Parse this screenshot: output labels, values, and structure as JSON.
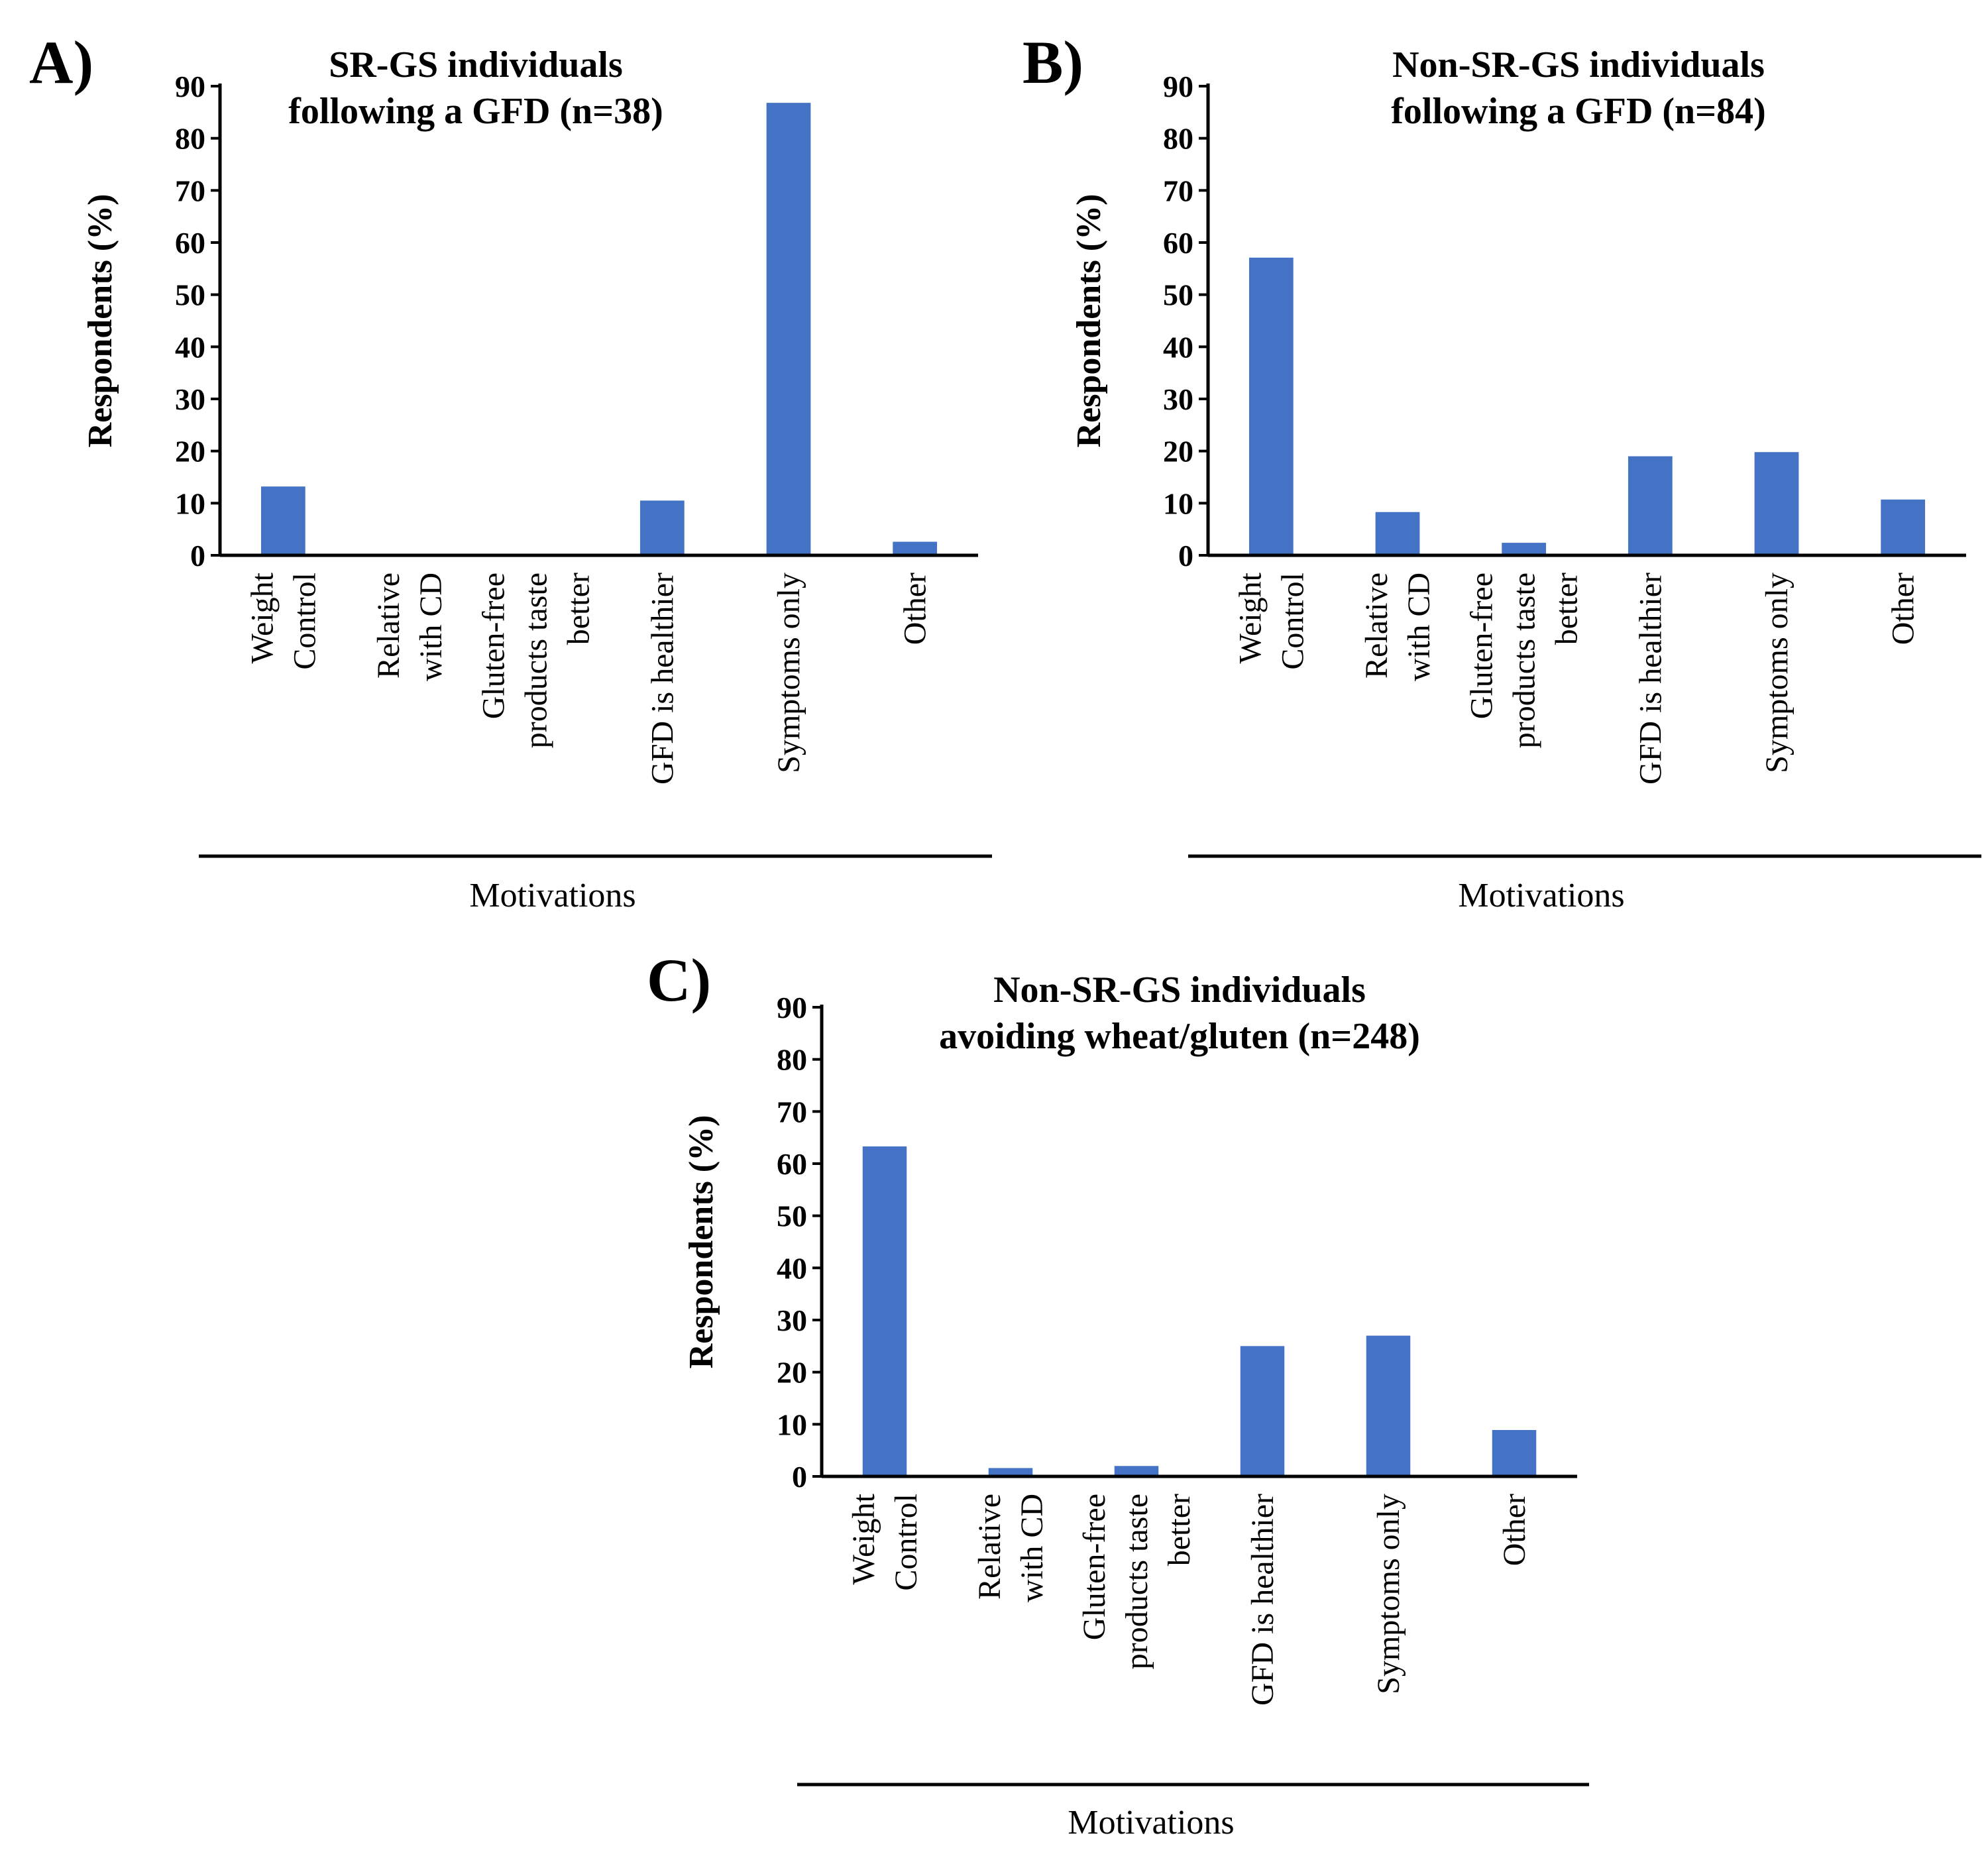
{
  "chart_data": [
    {
      "type": "bar",
      "panel": "A)",
      "title_lines": [
        "SR-GS individuals",
        "following a GFD (n=38)"
      ],
      "ylabel": "Respondents (%)",
      "xlabel": "Motivations",
      "ylim": [
        0,
        90
      ],
      "yticks": [
        0,
        10,
        20,
        30,
        40,
        50,
        60,
        70,
        80,
        90
      ],
      "categories": [
        [
          "Weight",
          "Control"
        ],
        [
          "Relative",
          "with CD"
        ],
        [
          "Gluten-free",
          "products taste",
          "better"
        ],
        [
          "GFD is healthier"
        ],
        [
          "Symptoms only"
        ],
        [
          "Other"
        ]
      ],
      "values": [
        13.2,
        0,
        0,
        10.5,
        86.8,
        2.6
      ],
      "color": "#4472C4"
    },
    {
      "type": "bar",
      "panel": "B)",
      "title_lines": [
        "Non-SR-GS individuals",
        "following a GFD (n=84)"
      ],
      "ylabel": "Respondents (%)",
      "xlabel": "Motivations",
      "ylim": [
        0,
        90
      ],
      "yticks": [
        0,
        10,
        20,
        30,
        40,
        50,
        60,
        70,
        80,
        90
      ],
      "categories": [
        [
          "Weight",
          "Control"
        ],
        [
          "Relative",
          "with CD"
        ],
        [
          "Gluten-free",
          "products taste",
          "better"
        ],
        [
          "GFD is healthier"
        ],
        [
          "Symptoms only"
        ],
        [
          "Other"
        ]
      ],
      "values": [
        57.1,
        8.3,
        2.4,
        19.0,
        19.8,
        10.7
      ],
      "color": "#4472C4"
    },
    {
      "type": "bar",
      "panel": "C)",
      "title_lines": [
        "Non-SR-GS individuals",
        "avoiding wheat/gluten (n=248)"
      ],
      "ylabel": "Respondents (%)",
      "xlabel": "Motivations",
      "ylim": [
        0,
        90
      ],
      "yticks": [
        0,
        10,
        20,
        30,
        40,
        50,
        60,
        70,
        80,
        90
      ],
      "categories": [
        [
          "Weight",
          "Control"
        ],
        [
          "Relative",
          "with CD"
        ],
        [
          "Gluten-free",
          "products taste",
          "better"
        ],
        [
          "GFD is healthier"
        ],
        [
          "Symptoms only"
        ],
        [
          "Other"
        ]
      ],
      "values": [
        63.3,
        1.6,
        2.0,
        25.0,
        27.0,
        8.9
      ],
      "color": "#4472C4"
    }
  ]
}
